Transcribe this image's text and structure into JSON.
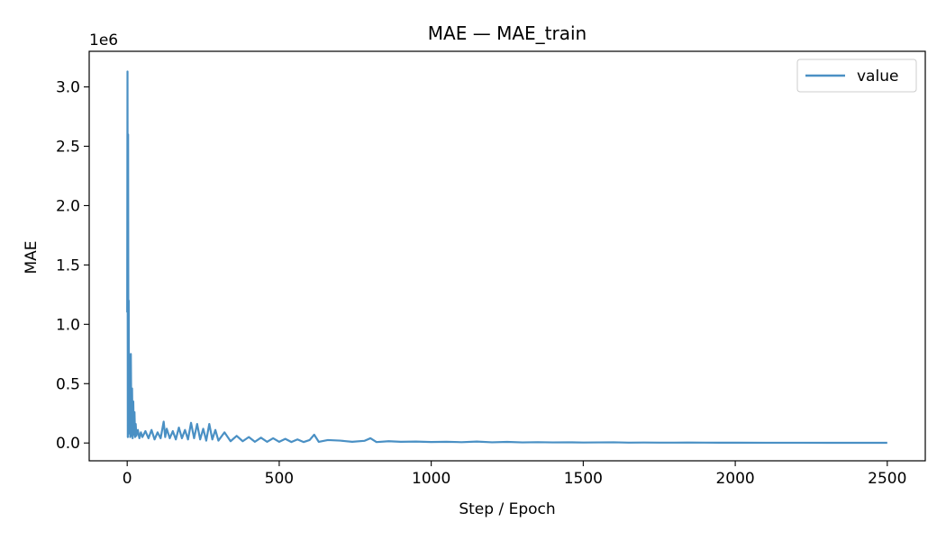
{
  "chart_data": {
    "type": "line",
    "title": "MAE — MAE_train",
    "xlabel": "Step / Epoch",
    "ylabel": "MAE",
    "y_offset_label": "1e6",
    "xlim": [
      -125,
      2625
    ],
    "ylim": [
      -150000,
      3300000
    ],
    "x_ticks": [
      0,
      500,
      1000,
      1500,
      2000,
      2500
    ],
    "x_tick_labels": [
      "0",
      "500",
      "1000",
      "1500",
      "2000",
      "2500"
    ],
    "y_ticks": [
      0,
      500000,
      1000000,
      1500000,
      2000000,
      2500000,
      3000000
    ],
    "y_tick_labels": [
      "0.0",
      "0.5",
      "1.0",
      "1.5",
      "2.0",
      "2.5",
      "3.0"
    ],
    "grid": false,
    "legend": "top-right",
    "color": "#4a90c4",
    "series": [
      {
        "name": "value",
        "x": [
          0,
          1,
          2,
          3,
          4,
          5,
          6,
          8,
          10,
          12,
          14,
          16,
          18,
          20,
          22,
          24,
          26,
          28,
          30,
          35,
          40,
          45,
          50,
          60,
          70,
          80,
          90,
          100,
          110,
          120,
          125,
          130,
          140,
          150,
          160,
          170,
          180,
          190,
          200,
          210,
          220,
          230,
          240,
          250,
          260,
          270,
          280,
          290,
          300,
          320,
          340,
          360,
          380,
          400,
          420,
          440,
          460,
          480,
          500,
          520,
          540,
          560,
          580,
          600,
          615,
          630,
          660,
          700,
          740,
          780,
          800,
          820,
          860,
          900,
          950,
          1000,
          1050,
          1100,
          1150,
          1200,
          1250,
          1300,
          1350,
          1400,
          1450,
          1500,
          1550,
          1600,
          1650,
          1700,
          1750,
          1800,
          1850,
          1900,
          1950,
          2000,
          2100,
          2200,
          2300,
          2400,
          2500
        ],
        "values": [
          1100000,
          3130000,
          50000,
          2600000,
          300000,
          1200000,
          80000,
          600000,
          50000,
          750000,
          60000,
          460000,
          40000,
          350000,
          70000,
          260000,
          50000,
          160000,
          60000,
          110000,
          40000,
          90000,
          50000,
          100000,
          40000,
          110000,
          30000,
          90000,
          40000,
          180000,
          50000,
          120000,
          40000,
          100000,
          30000,
          130000,
          40000,
          110000,
          30000,
          170000,
          40000,
          160000,
          30000,
          120000,
          20000,
          160000,
          30000,
          110000,
          20000,
          90000,
          15000,
          60000,
          15000,
          50000,
          10000,
          45000,
          10000,
          40000,
          10000,
          35000,
          8000,
          30000,
          8000,
          25000,
          70000,
          10000,
          25000,
          20000,
          10000,
          18000,
          40000,
          8000,
          15000,
          10000,
          12000,
          8000,
          10000,
          7000,
          12000,
          6000,
          9000,
          5000,
          7000,
          5000,
          6000,
          4000,
          5000,
          6000,
          3000,
          4000,
          3000,
          3000,
          3500,
          3000,
          2500,
          2500,
          2000,
          2000,
          1800,
          1500,
          1500
        ]
      }
    ]
  }
}
